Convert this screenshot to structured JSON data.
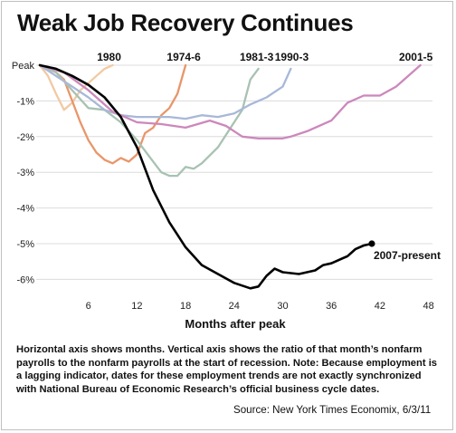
{
  "title": "Weak Job Recovery Continues",
  "note": "Horizontal axis shows months. Vertical axis shows the ratio of that month’s nonfarm payrolls to the nonfarm payrolls at the start of recession. Note: Because employment is a lagging indicator, dates for these employment trends are not exactly synchronized with National Bureau of Economic Research’s official business cycle dates.",
  "source": "Source: New York Times Economix, 6/3/11",
  "chart_data": {
    "type": "line",
    "title": "Weak Job Recovery Continues",
    "xlabel": "Months after peak",
    "ylabel": "",
    "xlim": [
      0,
      50
    ],
    "ylim": [
      -6.5,
      0
    ],
    "x_ticks": [
      6,
      12,
      18,
      24,
      30,
      36,
      42,
      48
    ],
    "y_ticks": [
      0,
      -1,
      -2,
      -3,
      -4,
      -5,
      -6
    ],
    "y_tick_labels": [
      "Peak",
      "-1%",
      "-2%",
      "-3%",
      "-4%",
      "-5%",
      "-6%"
    ],
    "grid": "horizontal",
    "series": [
      {
        "name": "1980",
        "color": "#f2c9a3",
        "x": [
          0,
          1,
          2,
          3,
          4,
          5,
          6,
          7,
          8,
          9
        ],
        "y": [
          0,
          -0.3,
          -0.8,
          -1.25,
          -1.05,
          -0.7,
          -0.5,
          -0.3,
          -0.1,
          0.0
        ]
      },
      {
        "name": "1974-6",
        "color": "#e8966a",
        "x": [
          0,
          1,
          2,
          3,
          4,
          5,
          6,
          7,
          8,
          9,
          10,
          11,
          12,
          13,
          14,
          15,
          16,
          17,
          18
        ],
        "y": [
          0,
          -0.05,
          -0.2,
          -0.4,
          -1.0,
          -1.6,
          -2.1,
          -2.45,
          -2.65,
          -2.75,
          -2.6,
          -2.7,
          -2.5,
          -1.9,
          -1.75,
          -1.4,
          -1.2,
          -0.8,
          0.0
        ]
      },
      {
        "name": "1981-3",
        "color": "#a8c2b2",
        "x": [
          0,
          2,
          4,
          6,
          8,
          10,
          12,
          14,
          15,
          16,
          17,
          18,
          19,
          20,
          22,
          24,
          25,
          26,
          27
        ],
        "y": [
          0,
          -0.2,
          -0.7,
          -1.2,
          -1.25,
          -1.6,
          -2.1,
          -2.7,
          -3.0,
          -3.1,
          -3.1,
          -2.85,
          -2.9,
          -2.75,
          -2.3,
          -1.6,
          -1.25,
          -0.4,
          -0.1
        ]
      },
      {
        "name": "1990-3",
        "color": "#a8b8d8",
        "x": [
          0,
          2,
          4,
          6,
          8,
          10,
          12,
          14,
          16,
          18,
          20,
          22,
          24,
          26,
          28,
          30,
          31
        ],
        "y": [
          0,
          -0.3,
          -0.6,
          -0.9,
          -1.25,
          -1.4,
          -1.45,
          -1.45,
          -1.45,
          -1.5,
          -1.4,
          -1.45,
          -1.35,
          -1.1,
          -0.9,
          -0.6,
          -0.1
        ]
      },
      {
        "name": "2001-5",
        "color": "#cc88bb",
        "x": [
          0,
          3,
          6,
          9,
          12,
          15,
          18,
          21,
          23,
          25,
          27,
          30,
          31,
          33,
          36,
          38,
          40,
          42,
          44,
          46,
          47
        ],
        "y": [
          0,
          -0.2,
          -0.7,
          -1.3,
          -1.6,
          -1.65,
          -1.75,
          -1.55,
          -1.7,
          -2.0,
          -2.05,
          -2.05,
          -2.0,
          -1.85,
          -1.55,
          -1.05,
          -0.85,
          -0.85,
          -0.6,
          -0.2,
          0.0
        ]
      },
      {
        "name": "2007-present",
        "color": "#000000",
        "x": [
          0,
          2,
          4,
          6,
          8,
          10,
          12,
          14,
          16,
          17,
          18,
          20,
          22,
          24,
          26,
          27,
          28,
          29,
          30,
          32,
          34,
          35,
          36,
          38,
          39,
          40,
          41
        ],
        "y": [
          0,
          -0.1,
          -0.3,
          -0.55,
          -0.9,
          -1.45,
          -2.3,
          -3.5,
          -4.4,
          -4.75,
          -5.1,
          -5.6,
          -5.85,
          -6.1,
          -6.25,
          -6.2,
          -5.9,
          -5.7,
          -5.8,
          -5.85,
          -5.75,
          -5.6,
          -5.55,
          -5.35,
          -5.15,
          -5.05,
          -5.0
        ]
      }
    ],
    "end_marker": {
      "series": "2007-present",
      "x": 41,
      "y": -5.0
    }
  }
}
